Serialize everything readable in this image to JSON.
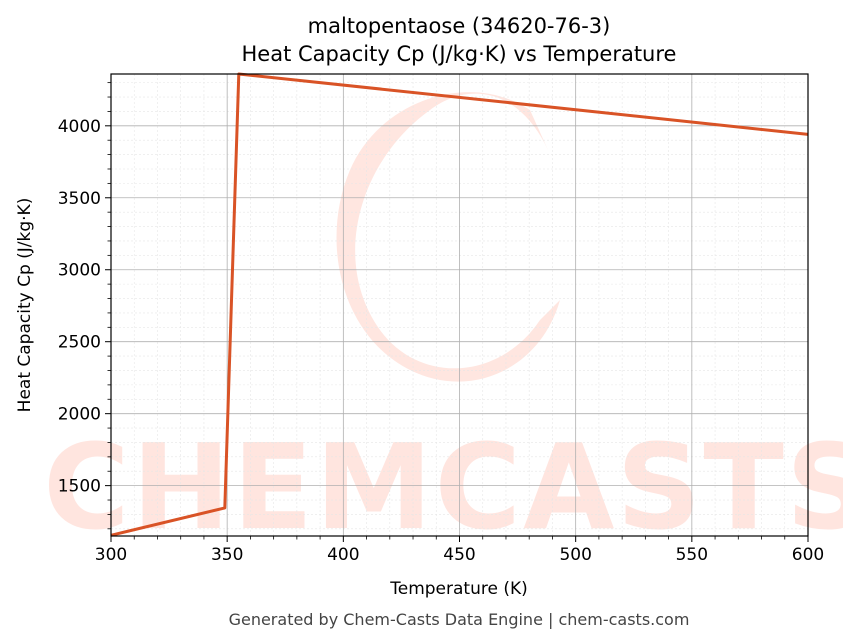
{
  "chart_data": {
    "type": "line",
    "title_line1": "maltopentaose (34620-76-3)",
    "title_line2": "Heat Capacity Cp (J/kg·K) vs Temperature",
    "xlabel": "Temperature (K)",
    "ylabel": "Heat Capacity Cp (J/kg·K)",
    "xlim": [
      300,
      600
    ],
    "ylim": [
      1150,
      4360
    ],
    "x_ticks": [
      300,
      350,
      400,
      450,
      500,
      550,
      600
    ],
    "y_ticks": [
      1500,
      2000,
      2500,
      3000,
      3500,
      4000
    ],
    "grid": true,
    "series": [
      {
        "color": "#d95326",
        "x": [
          300,
          349,
          355,
          600
        ],
        "y": [
          1155,
          1345,
          4360,
          3940
        ]
      }
    ],
    "watermark_text": "CHEMCASTS",
    "footer": "Generated by Chem-Casts Data Engine | chem-casts.com"
  }
}
